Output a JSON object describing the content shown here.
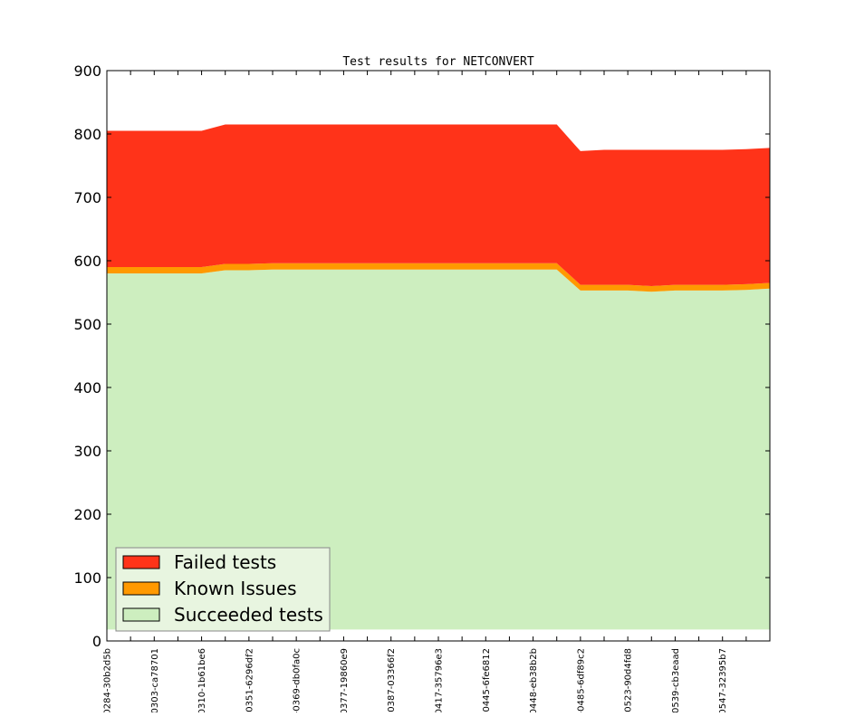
{
  "chart_data": {
    "type": "area",
    "stacked": true,
    "title": "Test results for NETCONVERT",
    "xlabel": "",
    "ylabel": "",
    "ylim": [
      0,
      900
    ],
    "yticks": [
      0,
      100,
      200,
      300,
      400,
      500,
      600,
      700,
      800,
      900
    ],
    "grid": false,
    "legend_position": "lower-left",
    "x_tick_labels": [
      "0284-30b2d5b",
      "0303-ca78701",
      "0310-1b61be6",
      "-0351-6296df2",
      "-0369-db0fa0c",
      "0377-19860e9",
      "0387-03366f2",
      "0417-35796e3",
      "0445-6fe6812",
      "0448-eb38b2b",
      "-0485-6df89c2",
      "-0523-90d4fd8",
      "0539-cb3eaad",
      "0547-32395b7"
    ],
    "series": [
      {
        "name": "Succeeded tests",
        "color": "#cdeebf",
        "values": [
          580,
          580,
          580,
          580,
          580,
          585,
          585,
          586,
          586,
          586,
          586,
          586,
          586,
          586,
          586,
          586,
          586,
          586,
          586,
          586,
          553,
          553,
          553,
          551,
          553,
          553,
          553,
          554,
          556
        ],
        "floor": 18
      },
      {
        "name": "Known Issues",
        "color": "#ff9900",
        "values": [
          10,
          10,
          10,
          10,
          10,
          10,
          10,
          10,
          10,
          10,
          10,
          10,
          10,
          10,
          10,
          10,
          10,
          10,
          10,
          10,
          9,
          9,
          9,
          9,
          9,
          9,
          9,
          9,
          9
        ]
      },
      {
        "name": "Failed tests",
        "color": "#ff3319",
        "values": [
          215,
          215,
          215,
          215,
          215,
          220,
          220,
          219,
          219,
          219,
          219,
          219,
          219,
          219,
          219,
          219,
          219,
          219,
          219,
          219,
          211,
          213,
          213,
          215,
          213,
          213,
          213,
          213,
          213
        ]
      }
    ]
  }
}
